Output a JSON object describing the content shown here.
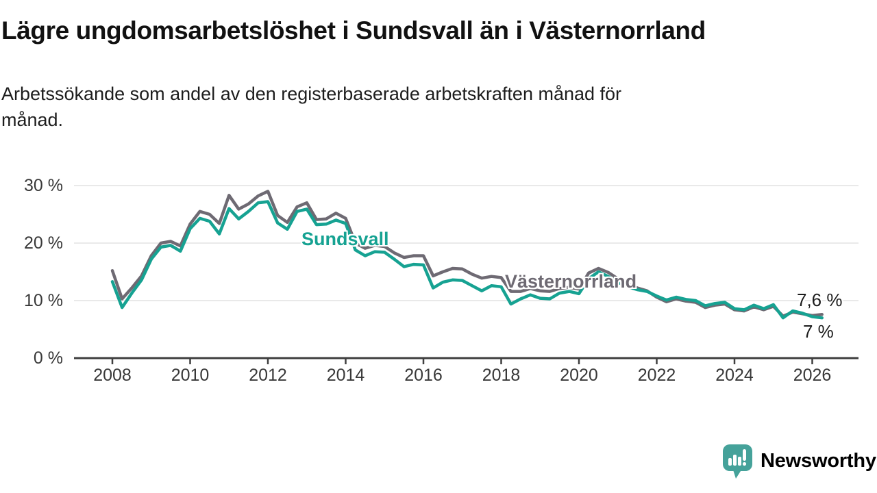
{
  "header": {
    "title": "Lägre ungdomsarbetslöshet i Sundsvall än i Västernorrland",
    "subtitle_line1": "Arbetssökande som andel av den registerbaserade arbetskraften månad för",
    "subtitle_line2": "månad."
  },
  "chart_data": {
    "type": "line",
    "title": "Lägre ungdomsarbetslöshet i Sundsvall än i Västernorrland",
    "subtitle": "Arbetssökande som andel av den registerbaserade arbetskraften månad för månad.",
    "unit": "%",
    "x_start": 2008.0,
    "x_step": 0.25,
    "xlim": [
      2008,
      2026.3
    ],
    "ylim": [
      0,
      32
    ],
    "grid": "horizontal",
    "legend_position": "inline-labels",
    "x_ticks": [
      {
        "value": 2008,
        "label": "2008"
      },
      {
        "value": 2010,
        "label": "2010"
      },
      {
        "value": 2012,
        "label": "2012"
      },
      {
        "value": 2014,
        "label": "2014"
      },
      {
        "value": 2016,
        "label": "2016"
      },
      {
        "value": 2018,
        "label": "2018"
      },
      {
        "value": 2020,
        "label": "2020"
      },
      {
        "value": 2022,
        "label": "2022"
      },
      {
        "value": 2024,
        "label": "2024"
      },
      {
        "value": 2026,
        "label": "2026"
      }
    ],
    "y_ticks": [
      {
        "value": 0,
        "label": "0 %"
      },
      {
        "value": 10,
        "label": "10 %"
      },
      {
        "value": 20,
        "label": "20 %"
      },
      {
        "value": 30,
        "label": "30 %"
      }
    ],
    "series": [
      {
        "id": "vasternorrland",
        "name": "Västernorrland",
        "color": "#6E6A73",
        "end_label": "7,6 %",
        "values": [
          15.2,
          10.3,
          12.2,
          14.3,
          17.8,
          20.0,
          20.3,
          19.5,
          23.3,
          25.5,
          25.0,
          23.4,
          28.3,
          25.9,
          26.8,
          28.2,
          29.0,
          24.8,
          23.6,
          26.3,
          27.0,
          24.1,
          24.2,
          25.2,
          24.3,
          20.0,
          19.1,
          19.6,
          19.4,
          18.3,
          17.5,
          17.8,
          17.8,
          14.3,
          15.0,
          15.6,
          15.5,
          14.6,
          13.9,
          14.2,
          14.0,
          11.6,
          11.6,
          12.1,
          11.7,
          11.6,
          12.1,
          12.3,
          12.0,
          14.8,
          15.6,
          14.9,
          13.8,
          12.9,
          12.2,
          11.7,
          10.6,
          9.8,
          10.3,
          9.9,
          9.7,
          8.8,
          9.2,
          9.4,
          8.4,
          8.2,
          8.9,
          8.4,
          9.0,
          7.3,
          8.0,
          7.7,
          7.4,
          7.6
        ]
      },
      {
        "id": "sundsvall",
        "name": "Sundsvall",
        "color": "#16A292",
        "end_label": "7 %",
        "values": [
          13.3,
          8.8,
          11.3,
          13.6,
          17.2,
          19.3,
          19.6,
          18.6,
          22.5,
          24.3,
          23.8,
          21.6,
          26.0,
          24.2,
          25.5,
          27.0,
          27.2,
          23.5,
          22.4,
          25.5,
          25.9,
          23.2,
          23.3,
          24.0,
          23.4,
          18.8,
          17.8,
          18.5,
          18.4,
          17.2,
          15.9,
          16.3,
          16.2,
          12.2,
          13.2,
          13.6,
          13.5,
          12.6,
          11.7,
          12.6,
          12.4,
          9.4,
          10.3,
          11.0,
          10.4,
          10.3,
          11.3,
          11.6,
          11.2,
          13.8,
          15.0,
          14.2,
          13.2,
          12.4,
          11.9,
          11.6,
          10.8,
          10.1,
          10.6,
          10.2,
          10.0,
          9.1,
          9.5,
          9.7,
          8.6,
          8.4,
          9.2,
          8.6,
          9.3,
          7.0,
          8.2,
          7.8,
          7.2,
          7.0
        ]
      }
    ]
  },
  "inline_labels": {
    "sundsvall": "Sundsvall",
    "vasternorrland": "Västernorrland"
  },
  "footer": {
    "brand": "Newsworthy",
    "brand_color": "#45A29A",
    "logo_icon": "bar-chart-speech-bubble"
  },
  "colors": {
    "sundsvall_line": "#16A292",
    "vasternorrland_line": "#6E6A73",
    "gridline": "#E2E2E2",
    "axis": "#3F3F3F",
    "tick_label": "#383838"
  }
}
